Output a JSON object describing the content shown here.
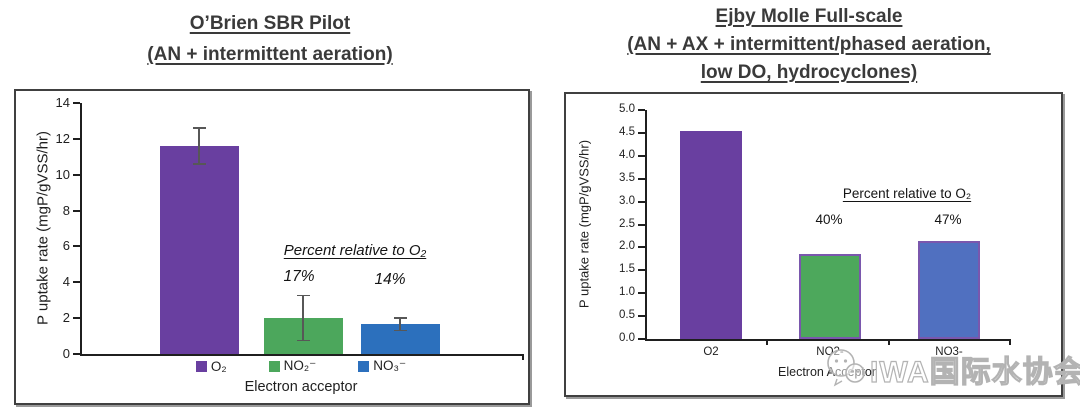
{
  "watermark": {
    "text": "IWA国际水协会",
    "icon": "wechat-logo-icon"
  },
  "chart_data": [
    {
      "type": "bar",
      "panel": "left",
      "title_lines": [
        "O’Brien SBR Pilot",
        "(AN + intermittent aeration)"
      ],
      "ylabel": "P uptake rate (mgP/gVSS/hr)",
      "xlabel": "Electron acceptor",
      "ylim": [
        0,
        14
      ],
      "ytick_values": [
        0,
        2,
        4,
        6,
        8,
        10,
        12,
        14
      ],
      "ytick_labels": [
        "0",
        "2",
        "4",
        "6",
        "8",
        "10",
        "12",
        "14"
      ],
      "categories": [
        "O₂",
        "NO₂⁻",
        "NO₃⁻"
      ],
      "category_keys": [
        "o2",
        "no2",
        "no3"
      ],
      "values": [
        11.6,
        2.0,
        1.65
      ],
      "errors": [
        1.0,
        1.25,
        0.35
      ],
      "bar_colors": [
        "#693FA0",
        "#4CA75C",
        "#2C70BD"
      ],
      "grid": false,
      "legend_position": "bottom",
      "annotation": {
        "heading": "Percent relative to O₂",
        "values": [
          "17%",
          "14%"
        ],
        "style": "italic"
      }
    },
    {
      "type": "bar",
      "panel": "right",
      "title_lines": [
        "Ejby Molle Full-scale",
        "(AN + AX + intermittent/phased aeration,",
        "low DO, hydrocyclones)"
      ],
      "ylabel": "P uptake rate (mgP/gVSS/hr)",
      "xlabel": "Electron Acceptor",
      "ylim": [
        0,
        5
      ],
      "ytick_values": [
        0,
        0.5,
        1,
        1.5,
        2,
        2.5,
        3,
        3.5,
        4,
        4.5,
        5
      ],
      "ytick_labels": [
        "0.0",
        "0.5",
        "1.0",
        "1.5",
        "2.0",
        "2.5",
        "3.0",
        "3.5",
        "4.0",
        "4.5",
        "5.0"
      ],
      "categories": [
        "O2",
        "NO2-",
        "NO3-"
      ],
      "category_keys": [
        "o2",
        "no2",
        "no3"
      ],
      "values": [
        4.55,
        1.85,
        2.15
      ],
      "bar_colors": [
        "#693FA0",
        "#4DA85C",
        "#5070C0"
      ],
      "bar_border_colors": [
        null,
        "#7A57AD",
        "#7A57AD"
      ],
      "grid": false,
      "legend_position": "none",
      "annotation": {
        "heading": "Percent relative to O₂",
        "values": [
          "40%",
          "47%"
        ],
        "style": "normal"
      }
    }
  ]
}
